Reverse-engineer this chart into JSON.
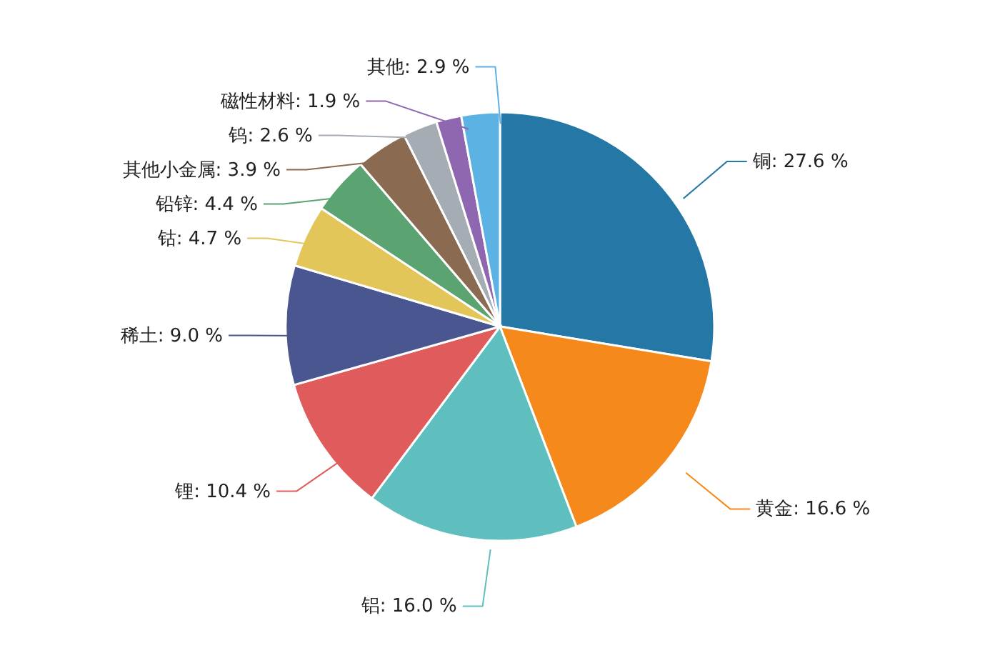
{
  "chart_data": {
    "type": "pie",
    "categories": [
      "铜",
      "黄金",
      "铝",
      "锂",
      "稀土",
      "钴",
      "铅锌",
      "其他小金属",
      "钨",
      "磁性材料",
      "其他"
    ],
    "values": [
      27.6,
      16.6,
      16.0,
      10.4,
      9.0,
      4.7,
      4.4,
      3.9,
      2.6,
      1.9,
      2.9
    ],
    "value_labels": [
      "27.6 %",
      "16.6 %",
      "16.0 %",
      "10.4 %",
      "9.0 %",
      "4.7 %",
      "4.4 %",
      "3.9 %",
      "2.6 %",
      "1.9 %",
      "2.9 %"
    ],
    "colors": [
      "#2578a6",
      "#f5891b",
      "#5fbfbf",
      "#e05c5c",
      "#4a568f",
      "#e3c659",
      "#5ba370",
      "#8b6a52",
      "#a5acb3",
      "#8e67b0",
      "#5cb3e3"
    ]
  }
}
